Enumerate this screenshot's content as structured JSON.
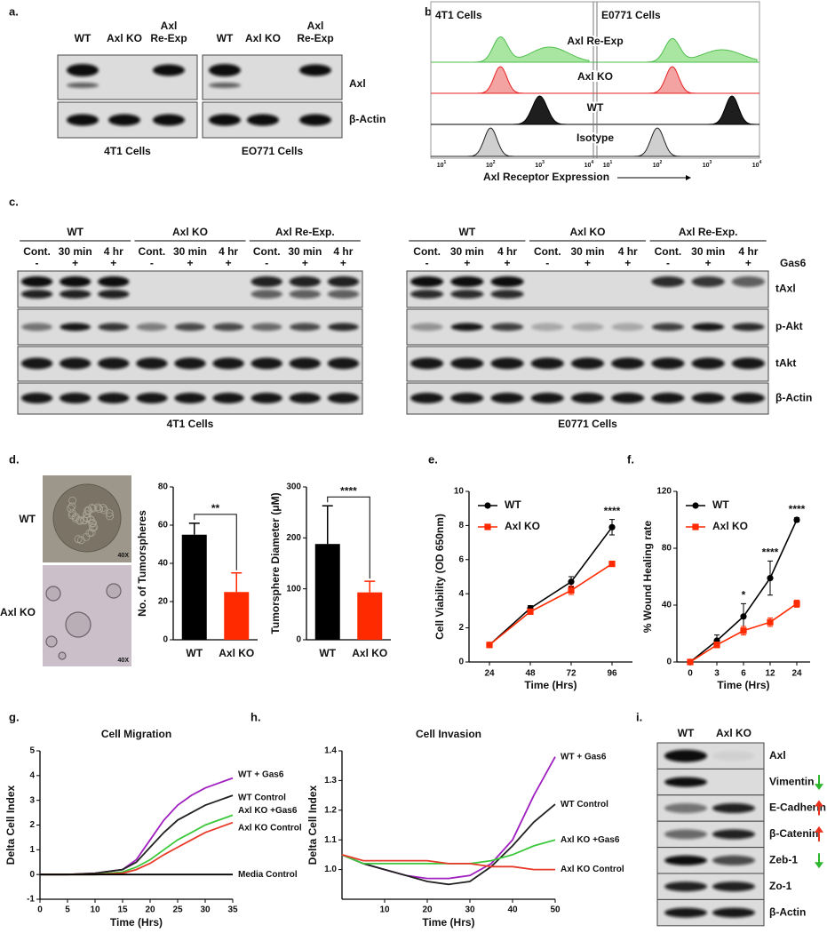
{
  "panel_labels": {
    "a": "a.",
    "b": "b.",
    "c": "c.",
    "d": "d.",
    "e": "e.",
    "f": "f.",
    "g": "g.",
    "h": "h.",
    "i": "i."
  },
  "blot_a": {
    "groups": [
      {
        "lanes": [
          [
            "WT"
          ],
          [
            "Axl KO"
          ],
          [
            "Axl",
            "Re-Exp"
          ]
        ],
        "caption": "4T1 Cells"
      },
      {
        "lanes": [
          [
            "WT"
          ],
          [
            "Axl KO"
          ],
          [
            "Axl",
            "Re-Exp"
          ]
        ],
        "caption": "EO771 Cells"
      }
    ],
    "bands": [
      "Axl",
      "β-Actin"
    ]
  },
  "flow_b": {
    "cell_lines": [
      "4T1 Cells",
      "E0771 Cells"
    ],
    "rows": [
      "Axl Re-Exp",
      "Axl KO",
      "WT",
      "Isotype"
    ],
    "ticks": [
      {
        "base": "10",
        "exp": "1"
      },
      {
        "base": "10",
        "exp": "2"
      },
      {
        "base": "10",
        "exp": "3"
      },
      {
        "base": "10",
        "exp": "4"
      }
    ],
    "x_label": "Axl Receptor Expression"
  },
  "blot_c": {
    "captions": [
      "4T1 Cells",
      "E0771 Cells"
    ],
    "conditions": [
      "WT",
      "Axl KO",
      "Axl Re-Exp."
    ],
    "lanes": [
      "Cont.",
      "30 min",
      "4 hr"
    ],
    "gas6": [
      "-",
      "+",
      "+"
    ],
    "treatment": "Gas6",
    "bands": [
      "tAxl",
      "p-Akt",
      "tAkt",
      "β-Actin"
    ]
  },
  "images_d": {
    "rows": [
      "WT",
      "Axl KO"
    ],
    "magnification": "40X"
  },
  "blot_i": {
    "columns": [
      "WT",
      "Axl KO"
    ],
    "column_colors": [
      "#000000",
      "#e8321e"
    ],
    "bands": [
      "Axl",
      "Vimentin",
      "E-Cadherin",
      "β-Catenin",
      "Zeb-1",
      "Zo-1",
      "β-Actin"
    ]
  },
  "chart_data": [
    {
      "type": "bar",
      "ylabel": "No. of Tumorspheres",
      "categories": [
        "WT",
        "Axl KO"
      ],
      "values": [
        55,
        25
      ],
      "errors": [
        6,
        10
      ],
      "colors": [
        "#000000",
        "#ff2a00"
      ],
      "ylim": [
        0,
        80
      ],
      "yticks": [
        0,
        20,
        40,
        60,
        80
      ],
      "significance": "**"
    },
    {
      "type": "bar",
      "ylabel": "Tumorsphere Diameter (μM)",
      "categories": [
        "WT",
        "Axl KO"
      ],
      "values": [
        188,
        93
      ],
      "errors": [
        75,
        22
      ],
      "colors": [
        "#000000",
        "#ff2a00"
      ],
      "ylim": [
        0,
        300
      ],
      "yticks": [
        0,
        100,
        200,
        300
      ],
      "significance": "****"
    },
    {
      "type": "line",
      "xlabel": "Time (Hrs)",
      "ylabel": "Cell Viability (OD 650nm)",
      "categories": [
        "24",
        "48",
        "72",
        "96"
      ],
      "series": [
        {
          "name": "WT",
          "color": "#000000",
          "marker": "circle",
          "values": [
            1.0,
            3.15,
            4.7,
            7.9
          ],
          "errors": [
            0.05,
            0.15,
            0.3,
            0.45
          ]
        },
        {
          "name": "Axl KO",
          "color": "#ff2a00",
          "marker": "square",
          "values": [
            1.0,
            2.95,
            4.2,
            5.75
          ],
          "errors": [
            0.05,
            0.1,
            0.25,
            0.15
          ]
        }
      ],
      "significance": [
        null,
        null,
        null,
        "****"
      ],
      "ylim": [
        0,
        10
      ],
      "yticks": [
        0,
        2,
        4,
        6,
        8,
        10
      ],
      "legend": "upper left"
    },
    {
      "type": "line",
      "xlabel": "Time (Hrs)",
      "ylabel": "% Wound Healing rate",
      "categories": [
        "0",
        "3",
        "6",
        "12",
        "24"
      ],
      "series": [
        {
          "name": "WT",
          "color": "#000000",
          "marker": "circle",
          "values": [
            0,
            15,
            32,
            59,
            100
          ],
          "errors": [
            1,
            4,
            9,
            12,
            1.5
          ]
        },
        {
          "name": "Axl KO",
          "color": "#ff2a00",
          "marker": "square",
          "values": [
            0,
            12,
            22,
            28,
            41
          ],
          "errors": [
            0.5,
            2,
            3,
            3,
            2.5
          ]
        }
      ],
      "significance": [
        null,
        null,
        "*",
        "****",
        "****"
      ],
      "ylim": [
        0,
        120
      ],
      "yticks": [
        0,
        40,
        80,
        120
      ],
      "legend": "upper left"
    },
    {
      "type": "line",
      "title": "Cell Migration",
      "xlabel": "Time (Hrs)",
      "ylabel": "Delta Cell Index",
      "x": [
        0,
        5,
        10,
        15,
        17.5,
        20,
        22.5,
        25,
        27.5,
        30,
        32.5,
        35
      ],
      "series": [
        {
          "name": "WT + Gas6",
          "color": "#a020c0",
          "values": [
            0,
            0,
            0.05,
            0.2,
            0.6,
            1.4,
            2.2,
            2.8,
            3.2,
            3.5,
            3.7,
            3.9
          ]
        },
        {
          "name": "WT Control",
          "color": "#222222",
          "values": [
            0,
            0,
            0.05,
            0.2,
            0.5,
            1.1,
            1.7,
            2.2,
            2.5,
            2.8,
            3.0,
            3.2
          ]
        },
        {
          "name": "Axl KO +Gas6",
          "color": "#3cc83c",
          "values": [
            0,
            0,
            0,
            0.1,
            0.3,
            0.6,
            1.0,
            1.4,
            1.7,
            2.0,
            2.2,
            2.4
          ]
        },
        {
          "name": "Axl KO Control",
          "color": "#e83a2a",
          "values": [
            0,
            0,
            0,
            0.05,
            0.2,
            0.45,
            0.8,
            1.1,
            1.4,
            1.7,
            1.9,
            2.1
          ]
        },
        {
          "name": "Media Control",
          "color": "#000000",
          "values": [
            0,
            0,
            0,
            0,
            0,
            0,
            0,
            0,
            0,
            0,
            0,
            0
          ]
        }
      ],
      "xlim": [
        0,
        35
      ],
      "xticks": [
        0,
        5,
        10,
        15,
        20,
        25,
        30,
        35
      ],
      "ylim": [
        -1,
        5
      ],
      "yticks": [
        -1,
        0,
        1,
        2,
        3,
        4,
        5
      ]
    },
    {
      "type": "line",
      "title": "Cell Invasion",
      "xlabel": "Time (Hrs)",
      "ylabel": "Delta Cell Index",
      "x": [
        0,
        5,
        10,
        15,
        20,
        25,
        30,
        35,
        40,
        45,
        50
      ],
      "series": [
        {
          "name": "WT + Gas6",
          "color": "#a020c0",
          "values": [
            1.05,
            1.02,
            1.0,
            0.98,
            0.97,
            0.97,
            0.98,
            1.02,
            1.1,
            1.25,
            1.38
          ]
        },
        {
          "name": "WT Control",
          "color": "#222222",
          "values": [
            1.05,
            1.02,
            1.0,
            0.98,
            0.96,
            0.95,
            0.96,
            1.01,
            1.08,
            1.16,
            1.22
          ]
        },
        {
          "name": "Axl KO +Gas6",
          "color": "#3cc83c",
          "values": [
            1.05,
            1.02,
            1.02,
            1.02,
            1.02,
            1.02,
            1.02,
            1.03,
            1.05,
            1.08,
            1.1
          ]
        },
        {
          "name": "Axl KO Control",
          "color": "#e83a2a",
          "values": [
            1.05,
            1.03,
            1.03,
            1.03,
            1.03,
            1.02,
            1.02,
            1.01,
            1.01,
            1.0,
            1.0
          ]
        }
      ],
      "xlim": [
        0,
        50
      ],
      "xticks": [
        10,
        20,
        30,
        40,
        50
      ],
      "ylim": [
        0.9,
        1.4
      ],
      "yticks": [
        {
          "value": 1,
          "label": "1.0"
        },
        1.1,
        1.2,
        1.3,
        1.4
      ]
    }
  ]
}
